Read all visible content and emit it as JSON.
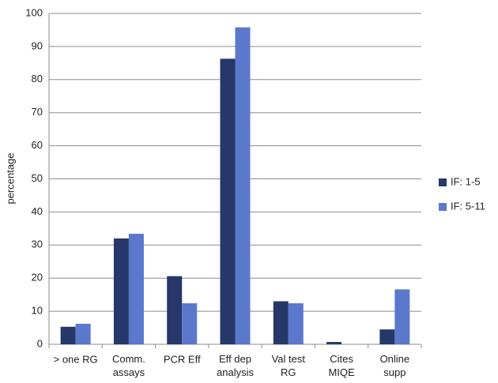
{
  "chart_data": {
    "type": "bar",
    "categories": [
      "> one RG",
      "Comm.\nassays",
      "PCR Eff",
      "Eff dep\nanalysis",
      "Val test\nRG",
      "Cites\nMIQE",
      "Online\nsupp"
    ],
    "series": [
      {
        "name": "IF: 1-5",
        "color": "#263769",
        "values": [
          5.3,
          32,
          20.6,
          86.3,
          13,
          0.7,
          4.5
        ]
      },
      {
        "name": "IF: 5-11",
        "color": "#5b78cd",
        "values": [
          6.2,
          33.4,
          12.4,
          95.8,
          12.4,
          0,
          16.6
        ]
      }
    ],
    "y_label": "percentage",
    "ylim": [
      0,
      100
    ],
    "yticks": [
      0,
      10,
      20,
      30,
      40,
      50,
      60,
      70,
      80,
      90,
      100
    ],
    "grid": true,
    "legend": "right"
  }
}
